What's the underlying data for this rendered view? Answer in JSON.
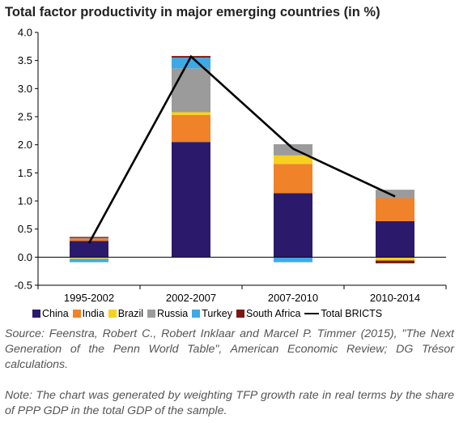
{
  "chart_data": {
    "type": "bar",
    "stacked": true,
    "title": "Total factor productivity in major emerging countries (in %)",
    "xlabel": "",
    "ylabel": "",
    "categories": [
      "1995-2002",
      "2002-2007",
      "2007-2010",
      "2010-2014"
    ],
    "ylim": [
      -0.5,
      4.0
    ],
    "yticks": [
      "-0.5",
      "0.0",
      "0.5",
      "1.0",
      "1.5",
      "2.0",
      "2.5",
      "3.0",
      "3.5",
      "4.0"
    ],
    "grid": false,
    "legend_position": "bottom",
    "series": [
      {
        "name": "China",
        "color": "#2b1a6b",
        "values": [
          0.29,
          2.05,
          1.14,
          0.64
        ]
      },
      {
        "name": "India",
        "color": "#f0822a",
        "values": [
          0.04,
          0.48,
          0.52,
          0.41
        ]
      },
      {
        "name": "Brazil",
        "color": "#f7d11e",
        "values": [
          -0.03,
          0.05,
          0.15,
          -0.06
        ]
      },
      {
        "name": "Russia",
        "color": "#9b9b9b",
        "values": [
          0.01,
          0.78,
          0.2,
          0.15
        ]
      },
      {
        "name": "Turkey",
        "color": "#3fa9e6",
        "values": [
          -0.06,
          0.19,
          -0.09,
          0.0
        ]
      },
      {
        "name": "South Africa",
        "color": "#7a1818",
        "values": [
          0.02,
          0.03,
          0.0,
          -0.05
        ]
      }
    ],
    "total_line": {
      "name": "Total BRICTS",
      "color": "#000000",
      "values": [
        0.25,
        3.57,
        1.93,
        1.08
      ]
    }
  },
  "source_note": "Source: Feenstra, Robert C., Robert Inklaar and Marcel P. Timmer (2015), \"The Next Generation of the Penn World Table\", American Economic Review; DG Trésor calculations.",
  "method_note": "Note: The chart was generated by weighting TFP growth rate in real terms by the share of PPP GDP in the total GDP of the sample."
}
